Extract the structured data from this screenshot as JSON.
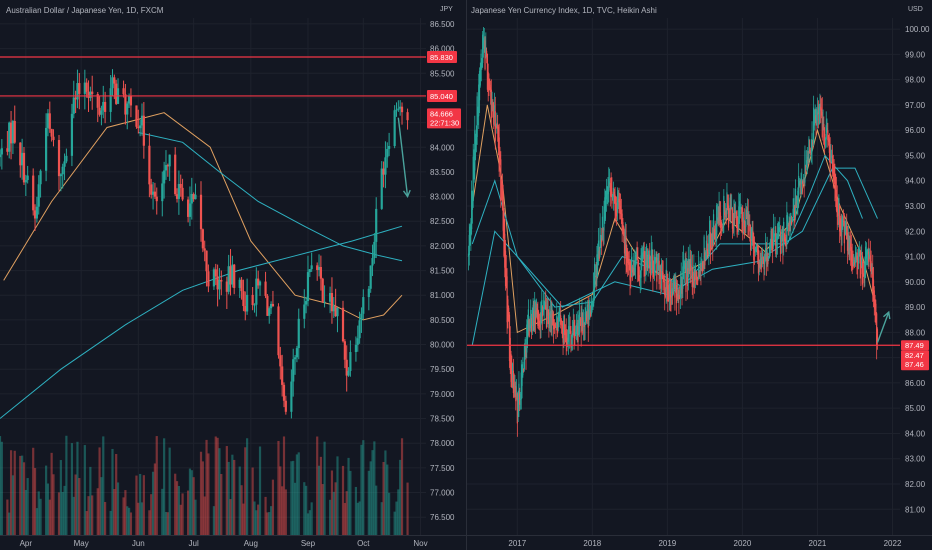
{
  "colors": {
    "background": "#131722",
    "grid": "#1e222d",
    "up": "#26a69a",
    "down": "#ef5350",
    "level_line": "#f23645",
    "ma_orange": "#e0a060",
    "ma_teal": "#2eb1c1",
    "arrow": "#4aa39c",
    "text": "#b2b5be"
  },
  "chart_data": [
    {
      "type": "candlestick",
      "title": "Australian Dollar / Japanese Yen, 1D, FXCM",
      "price_axis_unit": "JPY",
      "ylim": [
        76.2,
        86.6
      ],
      "y_ticks": [
        "86.500",
        "86.000",
        "85.500",
        "85.000",
        "84.500",
        "84.000",
        "83.500",
        "83.000",
        "82.500",
        "82.000",
        "81.500",
        "81.000",
        "80.500",
        "80.000",
        "79.500",
        "79.000",
        "78.500",
        "78.000",
        "77.500",
        "77.000",
        "76.500"
      ],
      "x_ticks": [
        "Apr",
        "May",
        "Jun",
        "Jul",
        "Aug",
        "Sep",
        "Oct",
        "Nov"
      ],
      "horizontal_levels": [
        {
          "value": 85.83,
          "label": "85.830"
        },
        {
          "value": 85.04,
          "label": "85.040"
        }
      ],
      "last_price": {
        "value": 84.666,
        "label": "84.666",
        "countdown": "22:71:30"
      },
      "price_path": [
        [
          "Mar 18",
          83.8
        ],
        [
          "Mar 25",
          84.4
        ],
        [
          "Apr 1",
          83.4
        ],
        [
          "Apr 6",
          82.5
        ],
        [
          "Apr 12",
          84.6
        ],
        [
          "Apr 20",
          83.4
        ],
        [
          "Apr 26",
          84.8
        ],
        [
          "May 3",
          85.4
        ],
        [
          "May 10",
          84.7
        ],
        [
          "May 18",
          85.2
        ],
        [
          "May 26",
          84.8
        ],
        [
          "Jun 2",
          84.6
        ],
        [
          "Jun 10",
          82.8
        ],
        [
          "Jun 18",
          83.6
        ],
        [
          "Jun 25",
          82.9
        ],
        [
          "Jul 2",
          82.8
        ],
        [
          "Jul 9",
          81.4
        ],
        [
          "Jul 16",
          81.2
        ],
        [
          "Jul 23",
          81.4
        ],
        [
          "Jul 30",
          80.8
        ],
        [
          "Aug 6",
          81.2
        ],
        [
          "Aug 13",
          80.5
        ],
        [
          "Aug 20",
          78.4
        ],
        [
          "Aug 27",
          80.3
        ],
        [
          "Sep 3",
          81.8
        ],
        [
          "Sep 10",
          81.0
        ],
        [
          "Sep 17",
          80.6
        ],
        [
          "Sep 22",
          79.5
        ],
        [
          "Sep 28",
          80.4
        ],
        [
          "Oct 5",
          81.5
        ],
        [
          "Oct 10",
          83.3
        ],
        [
          "Oct 15",
          84.3
        ],
        [
          "Oct 20",
          85.0
        ],
        [
          "Oct 25",
          84.4
        ]
      ],
      "moving_averages": [
        {
          "color": "orange",
          "path": [
            [
              "Mar 20",
              81.3
            ],
            [
              "Apr 15",
              82.9
            ],
            [
              "May 15",
              84.4
            ],
            [
              "Jun 15",
              84.7
            ],
            [
              "Jul 10",
              84.0
            ],
            [
              "Aug 1",
              82.1
            ],
            [
              "Aug 25",
              81.0
            ],
            [
              "Sep 15",
              80.8
            ],
            [
              "Oct 1",
              80.5
            ],
            [
              "Oct 12",
              80.6
            ],
            [
              "Oct 22",
              81.0
            ]
          ]
        },
        {
          "color": "teal",
          "path": [
            [
              "Jun 1",
              84.3
            ],
            [
              "Jun 25",
              84.1
            ],
            [
              "Jul 15",
              83.5
            ],
            [
              "Aug 5",
              82.9
            ],
            [
              "Aug 30",
              82.4
            ],
            [
              "Sep 20",
              82.0
            ],
            [
              "Oct 10",
              81.8
            ],
            [
              "Oct 22",
              81.7
            ]
          ]
        },
        {
          "color": "teal",
          "path": [
            [
              "Mar 18",
              78.5
            ],
            [
              "Apr 20",
              79.5
            ],
            [
              "May 25",
              80.4
            ],
            [
              "Jun 25",
              81.1
            ],
            [
              "Jul 25",
              81.5
            ],
            [
              "Aug 25",
              81.8
            ],
            [
              "Sep 25",
              82.1
            ],
            [
              "Oct 22",
              82.4
            ]
          ]
        }
      ],
      "projection_arrow": {
        "from": [
          "Oct 20",
          84.6
        ],
        "to": [
          "Oct 25",
          83.0
        ]
      }
    },
    {
      "type": "candlestick",
      "title": "Japanese Yen Currency Index, 1D, TVC, Heikin Ashi",
      "price_axis_unit": "USD",
      "ylim": [
        80.1,
        100.4
      ],
      "y_ticks": [
        "100.00",
        "99.00",
        "98.00",
        "97.00",
        "96.00",
        "95.00",
        "94.00",
        "93.00",
        "92.00",
        "91.00",
        "90.00",
        "89.00",
        "88.00",
        "87.00",
        "86.00",
        "85.00",
        "84.00",
        "83.00",
        "82.00",
        "81.00"
      ],
      "x_ticks": [
        "2017",
        "2018",
        "2019",
        "2020",
        "2021",
        "2022"
      ],
      "horizontal_levels": [
        {
          "value": 87.49,
          "label": "87.49"
        }
      ],
      "last_price": {
        "value": 87.46,
        "label": "87.46",
        "extra_labels": [
          "82.47"
        ]
      },
      "price_path": [
        [
          "2016.35",
          91.0
        ],
        [
          "2016.45",
          96.5
        ],
        [
          "2016.55",
          99.5
        ],
        [
          "2016.65",
          97.0
        ],
        [
          "2016.75",
          95.5
        ],
        [
          "2016.9",
          87.0
        ],
        [
          "2017.0",
          85.0
        ],
        [
          "2017.15",
          88.5
        ],
        [
          "2017.35",
          88.8
        ],
        [
          "2017.55",
          88.2
        ],
        [
          "2017.75",
          88.0
        ],
        [
          "2017.95",
          88.5
        ],
        [
          "2018.1",
          91.5
        ],
        [
          "2018.2",
          93.5
        ],
        [
          "2018.35",
          93.0
        ],
        [
          "2018.5",
          90.5
        ],
        [
          "2018.7",
          90.8
        ],
        [
          "2018.9",
          90.5
        ],
        [
          "2019.05",
          89.5
        ],
        [
          "2019.2",
          90.2
        ],
        [
          "2019.4",
          90.5
        ],
        [
          "2019.6",
          92.0
        ],
        [
          "2019.75",
          93.0
        ],
        [
          "2019.9",
          92.5
        ],
        [
          "2020.05",
          92.5
        ],
        [
          "2020.15",
          91.5
        ],
        [
          "2020.25",
          90.5
        ],
        [
          "2020.4",
          91.5
        ],
        [
          "2020.6",
          92.0
        ],
        [
          "2020.75",
          93.5
        ],
        [
          "2020.9",
          95.5
        ],
        [
          "2021.0",
          97.0
        ],
        [
          "2021.15",
          95.5
        ],
        [
          "2021.3",
          92.5
        ],
        [
          "2021.45",
          91.0
        ],
        [
          "2021.6",
          90.5
        ],
        [
          "2021.7",
          91.2
        ],
        [
          "2021.78",
          88.0
        ],
        [
          "2021.8",
          87.5
        ]
      ],
      "moving_averages": [
        {
          "color": "orange",
          "path": [
            [
              "2016.4",
              93.0
            ],
            [
              "2016.6",
              97.0
            ],
            [
              "2016.8",
              94.0
            ],
            [
              "2017.0",
              88.0
            ],
            [
              "2017.5",
              88.7
            ],
            [
              "2018.0",
              89.5
            ],
            [
              "2018.3",
              92.5
            ],
            [
              "2018.6",
              91.0
            ],
            [
              "2019.0",
              90.0
            ],
            [
              "2019.5",
              90.8
            ],
            [
              "2019.8",
              92.5
            ],
            [
              "2020.3",
              91.2
            ],
            [
              "2020.7",
              92.5
            ],
            [
              "2021.0",
              96.0
            ],
            [
              "2021.3",
              93.0
            ],
            [
              "2021.6",
              91.0
            ],
            [
              "2021.78",
              89.0
            ]
          ]
        },
        {
          "color": "teal",
          "path": [
            [
              "2016.4",
              91.5
            ],
            [
              "2016.7",
              94.0
            ],
            [
              "2017.0",
              91.0
            ],
            [
              "2017.5",
              89.0
            ],
            [
              "2018.0",
              89.2
            ],
            [
              "2018.4",
              91.0
            ],
            [
              "2018.8",
              90.5
            ],
            [
              "2019.2",
              89.8
            ],
            [
              "2019.7",
              91.5
            ],
            [
              "2020.2",
              91.5
            ],
            [
              "2020.6",
              91.5
            ],
            [
              "2020.9",
              93.5
            ],
            [
              "2021.1",
              95.0
            ],
            [
              "2021.4",
              94.0
            ],
            [
              "2021.6",
              92.5
            ]
          ]
        },
        {
          "color": "teal",
          "path": [
            [
              "2016.4",
              87.5
            ],
            [
              "2016.7",
              92.0
            ],
            [
              "2017.0",
              91.0
            ],
            [
              "2017.6",
              89.0
            ],
            [
              "2018.3",
              90.0
            ],
            [
              "2019.0",
              89.5
            ],
            [
              "2019.6",
              90.5
            ],
            [
              "2020.2",
              90.8
            ],
            [
              "2020.8",
              92.0
            ],
            [
              "2021.2",
              94.5
            ],
            [
              "2021.5",
              94.5
            ],
            [
              "2021.8",
              92.5
            ]
          ]
        }
      ],
      "projection_arrow": {
        "from": [
          "2021.8",
          87.6
        ],
        "to": [
          "2021.95",
          88.8
        ]
      }
    }
  ]
}
